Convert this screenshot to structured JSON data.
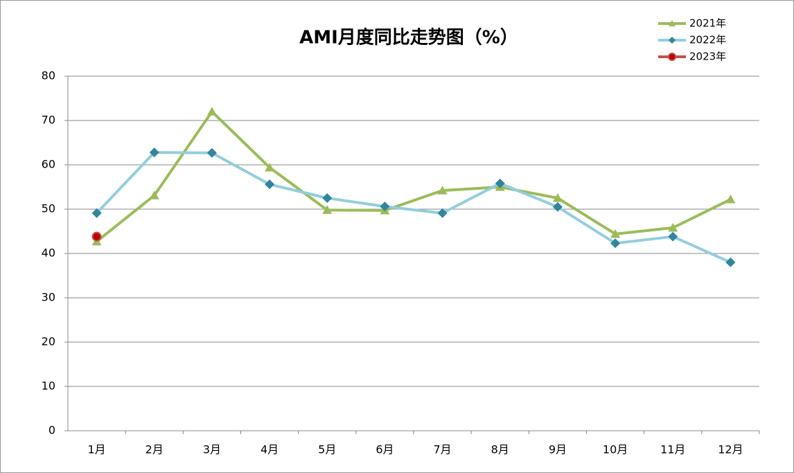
{
  "chart_data": {
    "type": "line",
    "title": "AMI月度同比走势图（%）",
    "categories": [
      "1月",
      "2月",
      "3月",
      "4月",
      "5月",
      "6月",
      "7月",
      "8月",
      "9月",
      "10月",
      "11月",
      "12月"
    ],
    "series": [
      {
        "name": "2021年",
        "color": "#9bbb59",
        "marker": "triangle",
        "values": [
          42.7,
          53.1,
          72.0,
          59.4,
          49.8,
          49.7,
          54.2,
          55.0,
          52.5,
          44.4,
          45.8,
          52.2
        ]
      },
      {
        "name": "2022年",
        "color": "#93cddd",
        "marker": "diamond",
        "markerColor": "#31859c",
        "values": [
          49.1,
          62.8,
          62.7,
          55.6,
          52.5,
          50.6,
          49.1,
          55.8,
          50.5,
          42.3,
          43.8,
          38.0
        ]
      },
      {
        "name": "2023年",
        "color": "#c0504d",
        "marker": "circle",
        "markerColor": "#c00000",
        "values": [
          43.8,
          null,
          null,
          null,
          null,
          null,
          null,
          null,
          null,
          null,
          null,
          null
        ]
      }
    ],
    "ylim": [
      0,
      80
    ],
    "yticks": [
      0,
      10,
      20,
      30,
      40,
      50,
      60,
      70,
      80
    ],
    "grid": true,
    "legend": "top-right"
  }
}
